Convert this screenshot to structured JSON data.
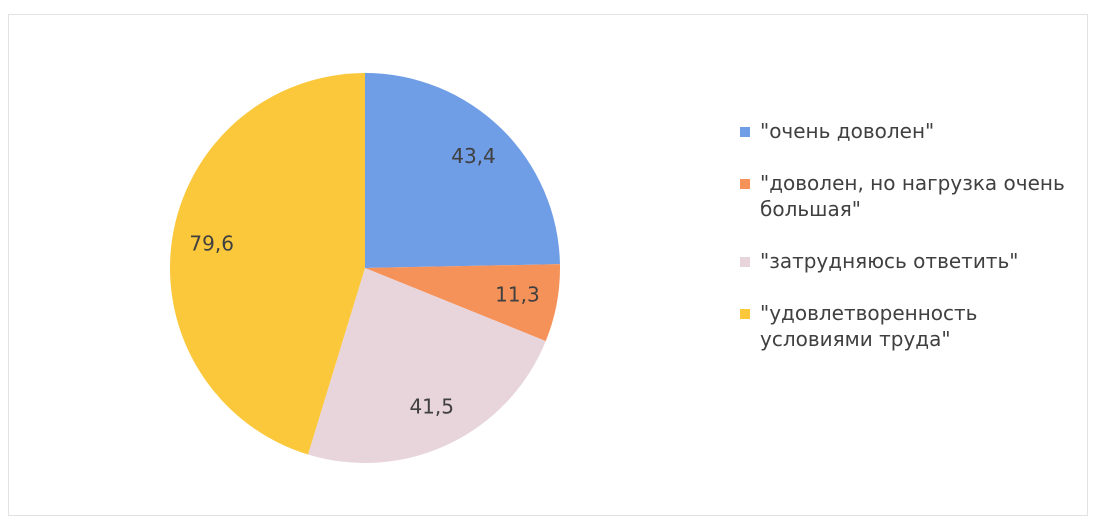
{
  "chart_data": {
    "type": "pie",
    "categories": [
      "\"очень доволен\"",
      "\"доволен, но нагрузка очень большая\"",
      "\"затрудняюсь ответить\"",
      "\"удовлетворенность условиями труда\""
    ],
    "values": [
      43.4,
      11.3,
      41.5,
      79.6
    ],
    "value_labels": [
      "43,4",
      "11,3",
      "41,5",
      "79,6"
    ],
    "colors": [
      "#6f9de6",
      "#f5925a",
      "#e8d5dc",
      "#fbc83c"
    ],
    "legend": "right"
  }
}
